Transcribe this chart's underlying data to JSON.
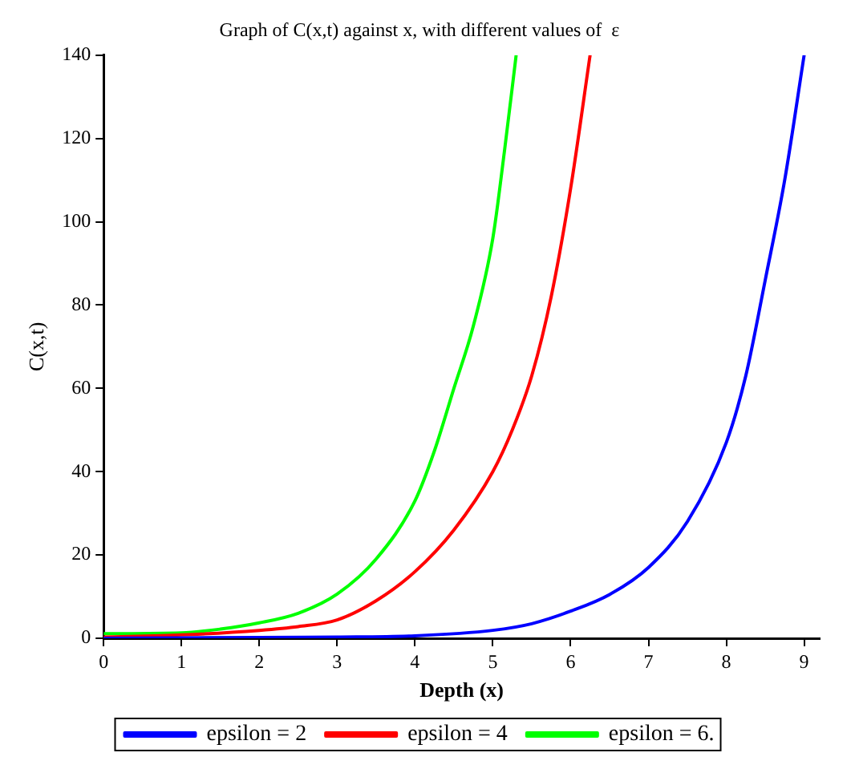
{
  "chart_data": {
    "type": "line",
    "title": "Graph of C(x,t) against x, with different values of  ε",
    "xlabel": "Depth (x)",
    "ylabel": "C(x,t)",
    "xlim": [
      0,
      9.2
    ],
    "ylim": [
      0,
      140
    ],
    "xticks": [
      0,
      1,
      2,
      3,
      4,
      5,
      6,
      7,
      8,
      9
    ],
    "yticks": [
      0,
      20,
      40,
      60,
      80,
      100,
      120,
      140
    ],
    "legend": "bottom",
    "grid": false,
    "marker": "none",
    "line_style": "solid",
    "series": [
      {
        "name": "epsilon = 2",
        "color": "#0000ff",
        "x": [
          0,
          1,
          2,
          3,
          4,
          5,
          5.5,
          6,
          6.5,
          7,
          7.5,
          8,
          8.25,
          8.5,
          8.75,
          9
        ],
        "values": [
          0,
          0.1,
          0.2,
          0.3,
          0.6,
          1.9,
          3.5,
          6.5,
          10.5,
          17,
          28,
          47,
          63,
          86,
          110,
          140
        ]
      },
      {
        "name": "epsilon = 4",
        "color": "#ff0000",
        "x": [
          0,
          1,
          2,
          2.5,
          3,
          3.5,
          4,
          4.5,
          5,
          5.25,
          5.5,
          5.75,
          6,
          6.25
        ],
        "values": [
          0.3,
          0.8,
          1.9,
          2.8,
          4.4,
          9,
          16,
          26,
          40,
          50,
          63,
          82,
          108,
          140
        ]
      },
      {
        "name": "epsilon = 6.",
        "color": "#00ff00",
        "x": [
          0,
          1,
          1.5,
          2,
          2.5,
          3,
          3.5,
          4,
          4.25,
          4.5,
          4.75,
          5,
          5.15,
          5.3
        ],
        "values": [
          1.1,
          1.3,
          2.2,
          3.7,
          6,
          10.6,
          19,
          33,
          45,
          60,
          75,
          96,
          117,
          140
        ]
      }
    ]
  }
}
